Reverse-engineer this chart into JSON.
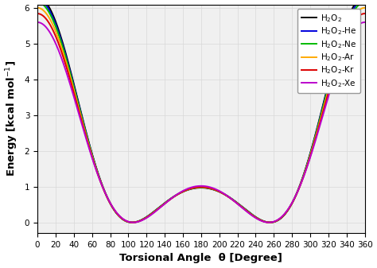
{
  "xlabel": "Torsional Angle  θ [Degree]",
  "ylabel": "Energy [kcal mol$^{-1}$]",
  "xlim": [
    0,
    360
  ],
  "ylim": [
    -0.3,
    6.1
  ],
  "xticks": [
    0,
    20,
    40,
    60,
    80,
    100,
    120,
    140,
    160,
    180,
    200,
    220,
    240,
    260,
    280,
    300,
    320,
    340,
    360
  ],
  "yticks": [
    0,
    1,
    2,
    3,
    4,
    5,
    6
  ],
  "background_color": "#f0f0f0",
  "series": [
    {
      "label": "H$_2$O$_2$",
      "color": "#000000"
    },
    {
      "label": "H$_2$O$_2$-He",
      "color": "#0000dd"
    },
    {
      "label": "H$_2$O$_2$-Ne",
      "color": "#00bb00"
    },
    {
      "label": "H$_2$O$_2$-Ar",
      "color": "#ffaa00"
    },
    {
      "label": "H$_2$O$_2$-Kr",
      "color": "#dd0000"
    },
    {
      "label": "H$_2$O$_2$-Xe",
      "color": "#bb00cc"
    }
  ],
  "series_params": [
    [
      1.7375,
      2.375,
      0.0,
      0.3
    ],
    [
      1.72,
      2.34,
      0.0,
      0.29
    ],
    [
      1.7,
      2.31,
      0.0,
      0.28
    ],
    [
      1.66,
      2.25,
      0.0,
      0.26
    ],
    [
      1.62,
      2.185,
      0.0,
      0.24
    ],
    [
      1.56,
      2.09,
      0.0,
      0.2
    ]
  ],
  "grid_color": "#d8d8d8",
  "linewidth": 1.4
}
